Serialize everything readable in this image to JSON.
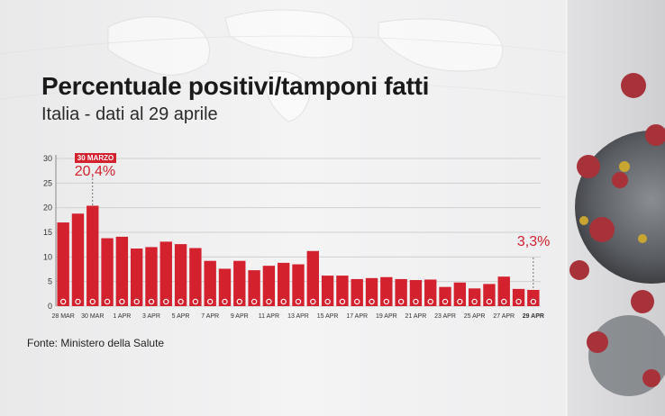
{
  "header": {
    "title": "Percentuale positivi/tamponi fatti",
    "subtitle": "Italia - dati al 29 aprile"
  },
  "footer": {
    "source": "Fonte: Ministero della Salute"
  },
  "colors": {
    "bar": "#d3212e",
    "grid": "#d0d0d0",
    "axis_text": "#333333"
  },
  "callouts": {
    "start_tag": "30 MARZO",
    "start_value": "20,4%",
    "end_value": "3,3%"
  },
  "chart_data": {
    "type": "bar",
    "title": "Percentuale positivi/tamponi fatti",
    "subtitle": "Italia - dati al 29 aprile",
    "ylim": [
      0,
      30
    ],
    "yticks": [
      0,
      5,
      10,
      15,
      20,
      25,
      30
    ],
    "grid": true,
    "categories": [
      "28 MAR",
      "29 MAR",
      "30 MAR",
      "31 MAR",
      "1 APR",
      "2 APR",
      "3 APR",
      "4 APR",
      "5 APR",
      "6 APR",
      "7 APR",
      "8 APR",
      "9 APR",
      "10 APR",
      "11 APR",
      "12 APR",
      "13 APR",
      "14 APR",
      "15 APR",
      "16 APR",
      "17 APR",
      "18 APR",
      "19 APR",
      "20 APR",
      "21 APR",
      "22 APR",
      "23 APR",
      "24 APR",
      "25 APR",
      "26 APR",
      "27 APR",
      "28 APR",
      "29 APR"
    ],
    "tick_labels": [
      "28 MAR",
      "",
      "30 MAR",
      "",
      "1 APR",
      "",
      "3 APR",
      "",
      "5 APR",
      "",
      "7 APR",
      "",
      "9 APR",
      "",
      "11 APR",
      "",
      "13 APR",
      "",
      "15 APR",
      "",
      "17 APR",
      "",
      "19 APR",
      "",
      "21 APR",
      "",
      "23 APR",
      "",
      "25 APR",
      "",
      "27 APR",
      "",
      "29 APR"
    ],
    "values": [
      17.0,
      18.8,
      20.4,
      13.8,
      14.1,
      11.7,
      12.0,
      13.1,
      12.6,
      11.8,
      9.2,
      7.6,
      9.2,
      7.3,
      8.2,
      8.8,
      8.5,
      11.2,
      6.2,
      6.2,
      5.5,
      5.7,
      5.9,
      5.5,
      5.3,
      5.4,
      3.9,
      4.8,
      3.6,
      4.5,
      6.0,
      3.5,
      3.3
    ]
  }
}
